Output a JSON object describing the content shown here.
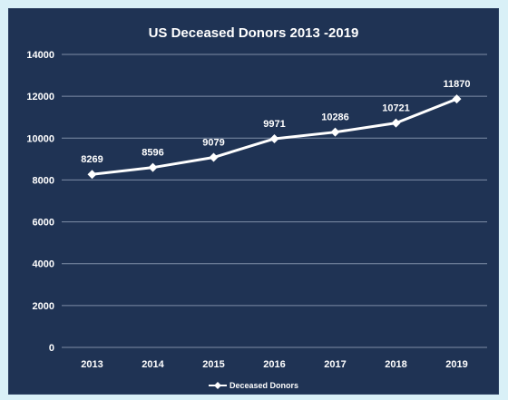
{
  "chart_data": {
    "type": "line",
    "title": "US Deceased Donors 2013 -2019",
    "xlabel": "",
    "ylabel": "",
    "categories": [
      "2013",
      "2014",
      "2015",
      "2016",
      "2017",
      "2018",
      "2019"
    ],
    "series": [
      {
        "name": "Deceased Donors",
        "values": [
          8269,
          8596,
          9079,
          9971,
          10286,
          10721,
          11870
        ]
      }
    ],
    "data_labels": [
      "8269",
      "8596",
      "9079",
      "9971",
      "10286",
      "10721",
      "11870"
    ],
    "ylim": [
      0,
      14000
    ],
    "yticks": [
      "0",
      "2000",
      "4000",
      "6000",
      "8000",
      "10000",
      "12000",
      "14000"
    ],
    "grid": true,
    "legend_position": "bottom",
    "colors": {
      "background": "#1f3354",
      "line": "#ffffff",
      "grid": "#7f8ea6",
      "text": "#ffffff"
    }
  }
}
